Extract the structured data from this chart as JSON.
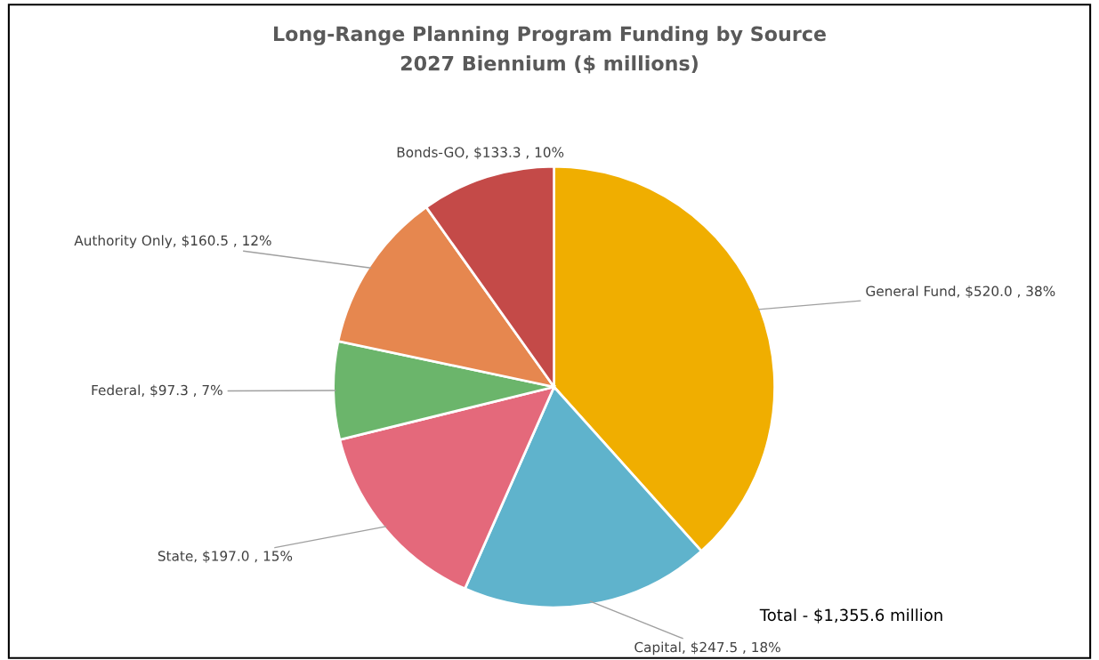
{
  "chart_data": {
    "type": "pie",
    "title": "Long-Range Planning Program Funding by Source",
    "subtitle": "2027 Biennium ($ millions)",
    "categories": [
      "General Fund",
      "Capital",
      "State",
      "Federal",
      "Authority Only",
      "Bonds-GO"
    ],
    "values": [
      520.0,
      247.5,
      197.0,
      97.3,
      160.5,
      133.3
    ],
    "value_labels": [
      "$520.0 , 38%",
      "$247.5 , 18%",
      "$197.0 , 15%",
      "$97.3 , 7%",
      "$160.5 , 12%",
      "$133.3 , 10%"
    ],
    "colors": [
      "#f0ae00",
      "#5fb3cc",
      "#e4697b",
      "#6bb56b",
      "#e6874f",
      "#c44a48"
    ],
    "annotations": [
      "Total - $1,355.6 million"
    ],
    "legend": false
  }
}
